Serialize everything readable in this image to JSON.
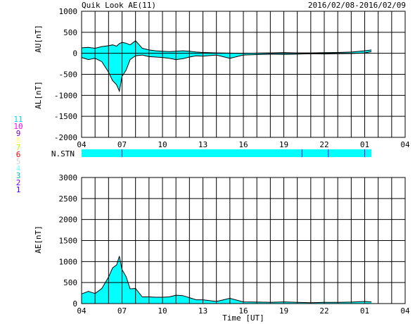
{
  "header": {
    "title": "Quik Look AE(11)",
    "date_range": "2016/02/08-2016/02/09"
  },
  "colors": {
    "fill": "#00ffff",
    "line": "#000000",
    "grid": "#000000",
    "stn_marker": "#8000ff"
  },
  "stations": {
    "items": [
      {
        "label": "11",
        "color": "#00d0ff"
      },
      {
        "label": "10",
        "color": "#ff00ff"
      },
      {
        "label": "9",
        "color": "#8000c0"
      },
      {
        "label": "8",
        "color": "#ffff80"
      },
      {
        "label": "7",
        "color": "#c0ff00"
      },
      {
        "label": "6",
        "color": "#ff0000"
      },
      {
        "label": "5",
        "color": "#d0d0d0"
      },
      {
        "label": "4",
        "color": "#80ffff"
      },
      {
        "label": "3",
        "color": "#00c0a0"
      },
      {
        "label": "2",
        "color": "#8000ff"
      },
      {
        "label": "1",
        "color": "#4000ff"
      }
    ]
  },
  "nstn": {
    "label": "N.STN",
    "change_hours": [
      7.0,
      20.35,
      22.3,
      25.0
    ]
  },
  "chart_data": [
    {
      "type": "area",
      "title": "Quik Look AE(11)",
      "ylabel_upper": "AU[nT]",
      "ylabel_lower": "AL[nT]",
      "ylim": [
        -2000,
        1000
      ],
      "yticks": [
        "1000",
        "500",
        "0",
        "-500",
        "-1000",
        "-1500",
        "-2000"
      ],
      "xticks": [
        "04",
        "07",
        "10",
        "13",
        "16",
        "19",
        "22",
        "01",
        "04"
      ],
      "grid": true,
      "x_hours": [
        4,
        4.5,
        5,
        5.5,
        6,
        6.3,
        6.6,
        6.8,
        7,
        7.3,
        7.6,
        8,
        8.5,
        9,
        9.5,
        10,
        10.5,
        11,
        11.5,
        12,
        12.5,
        13,
        14,
        15,
        16,
        17,
        18,
        19,
        20,
        21,
        22,
        23,
        24,
        25,
        25.5
      ],
      "series": [
        {
          "values": [
            130,
            140,
            120,
            160,
            180,
            200,
            170,
            230,
            260,
            240,
            200,
            300,
            120,
            80,
            60,
            50,
            40,
            50,
            60,
            50,
            30,
            20,
            10,
            5,
            0,
            5,
            10,
            15,
            10,
            10,
            15,
            20,
            30,
            60,
            80
          ]
        },
        {
          "values": [
            -100,
            -150,
            -120,
            -200,
            -450,
            -650,
            -750,
            -900,
            -550,
            -400,
            -150,
            -60,
            -40,
            -80,
            -90,
            -100,
            -120,
            -150,
            -130,
            -90,
            -60,
            -70,
            -40,
            -120,
            -40,
            -30,
            -20,
            -25,
            -20,
            -10,
            -15,
            -10,
            -5,
            10,
            40
          ]
        }
      ]
    },
    {
      "type": "area",
      "ylabel": "AE[nT]",
      "xlabel": "Time [UT]",
      "ylim": [
        0,
        3000
      ],
      "yticks": [
        "3000",
        "2500",
        "2000",
        "1500",
        "1000",
        "500",
        "0"
      ],
      "xticks": [
        "04",
        "07",
        "10",
        "13",
        "16",
        "19",
        "22",
        "01",
        "04"
      ],
      "grid": true,
      "x_hours": [
        4,
        4.5,
        5,
        5.5,
        6,
        6.3,
        6.6,
        6.8,
        7,
        7.3,
        7.6,
        8,
        8.5,
        9,
        9.5,
        10,
        10.5,
        11,
        11.5,
        12,
        12.5,
        13,
        14,
        15,
        16,
        17,
        18,
        19,
        20,
        21,
        22,
        23,
        24,
        25,
        25.5
      ],
      "series": [
        {
          "values": [
            230,
            290,
            240,
            360,
            630,
            850,
            920,
            1130,
            810,
            640,
            350,
            360,
            160,
            160,
            150,
            150,
            160,
            200,
            190,
            140,
            90,
            90,
            50,
            125,
            40,
            35,
            30,
            40,
            30,
            20,
            30,
            30,
            35,
            50,
            40
          ]
        }
      ]
    }
  ]
}
